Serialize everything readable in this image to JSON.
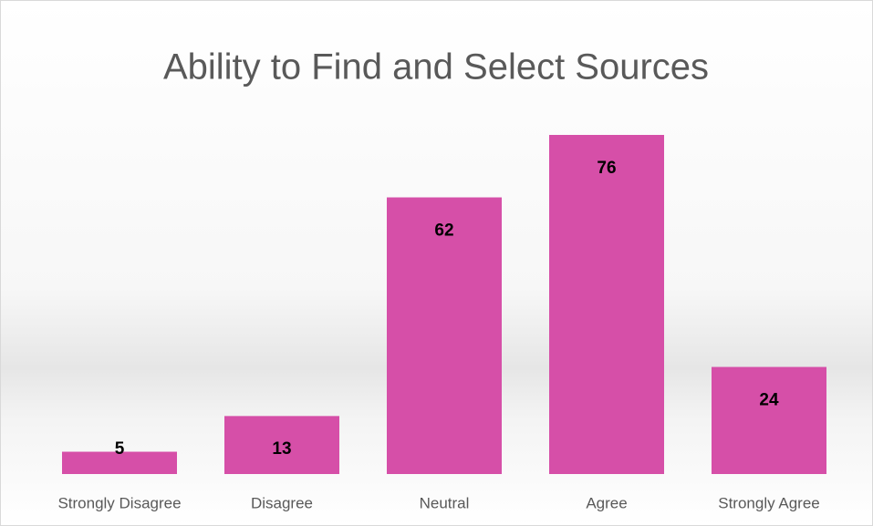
{
  "chart_data": {
    "type": "bar",
    "title": "Ability to Find and Select Sources",
    "categories": [
      "Strongly Disagree",
      "Disagree",
      "Neutral",
      "Agree",
      "Strongly Agree"
    ],
    "values": [
      5,
      13,
      62,
      76,
      24
    ],
    "color": "#d64fa8"
  }
}
